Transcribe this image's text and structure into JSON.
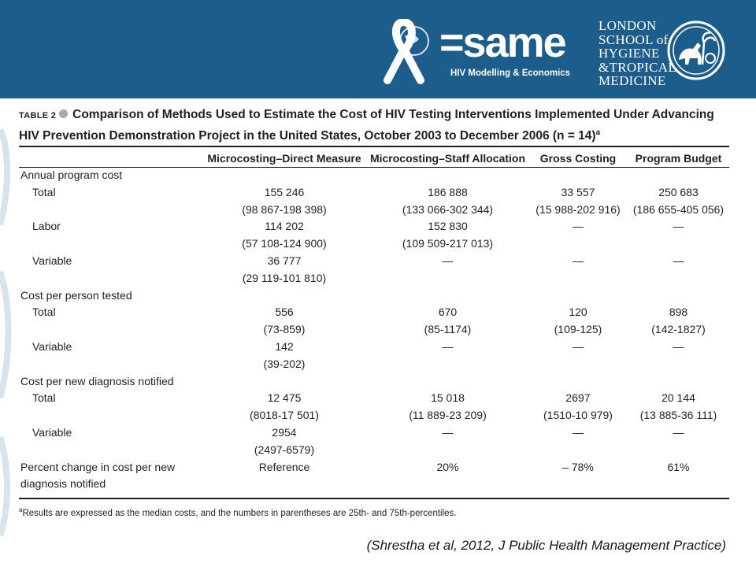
{
  "header": {
    "same_logo": "=same",
    "same_subtitle": "HIV Modelling & Economics",
    "lshtm_lines": [
      "LONDON",
      "SCHOOL of",
      "HYGIENE",
      "&TROPICAL",
      "MEDICINE"
    ],
    "banner_color": "#1d5d8c"
  },
  "table": {
    "label": "TABLE 2",
    "title": "Comparison of Methods Used to Estimate the Cost of HIV Testing Interventions Implemented Under Advancing HIV Prevention Demonstration Project in the United States, October 2003 to December 2006 (n = 14)",
    "title_superscript": "a",
    "columns": [
      "",
      "Microcosting–Direct Measure",
      "Microcosting–Staff Allocation",
      "Gross Costing",
      "Program Budget"
    ],
    "rows": [
      [
        "Annual program cost",
        "",
        "",
        "",
        ""
      ],
      [
        "Total",
        "155 246",
        "186 888",
        "33 557",
        "250 683"
      ],
      [
        "",
        "(98 867-198 398)",
        "(133 066-302 344)",
        "(15 988-202 916)",
        "(186 655-405 056)"
      ],
      [
        "Labor",
        "114 202",
        "152 830",
        "—",
        "—"
      ],
      [
        "",
        "(57 108-124 900)",
        "(109 509-217 013)",
        "",
        ""
      ],
      [
        "Variable",
        "36 777",
        "—",
        "—",
        "—"
      ],
      [
        "",
        "(29 119-101 810)",
        "",
        "",
        ""
      ],
      [
        "Cost per person tested",
        "",
        "",
        "",
        ""
      ],
      [
        "Total",
        "556",
        "670",
        "120",
        "898"
      ],
      [
        "",
        "(73-859)",
        "(85-1174)",
        "(109-125)",
        "(142-1827)"
      ],
      [
        "Variable",
        "142",
        "—",
        "—",
        "—"
      ],
      [
        "",
        "(39-202)",
        "",
        "",
        ""
      ],
      [
        "Cost per new diagnosis notified",
        "",
        "",
        "",
        ""
      ],
      [
        "Total",
        "12 475",
        "15 018",
        "2697",
        "20 144"
      ],
      [
        "",
        "(8018-17 501)",
        "(11 889-23 209)",
        "(1510-10 979)",
        "(13 885-36 111)"
      ],
      [
        "Variable",
        "2954",
        "—",
        "—",
        "—"
      ],
      [
        "",
        "(2497-6579)",
        "",
        "",
        ""
      ],
      [
        "Percent change in cost per new",
        "Reference",
        "20%",
        "– 78%",
        "61%"
      ],
      [
        "diagnosis notified",
        "",
        "",
        "",
        ""
      ]
    ],
    "subrow_labels": [
      "Total",
      "Labor",
      "Variable"
    ],
    "footnote_marker": "a",
    "footnote": "Results are expressed as the median costs, and the numbers in parentheses are 25th- and 75th-percentiles."
  },
  "citation": "(Shrestha et al, 2012, J Public Health Management Practice)"
}
